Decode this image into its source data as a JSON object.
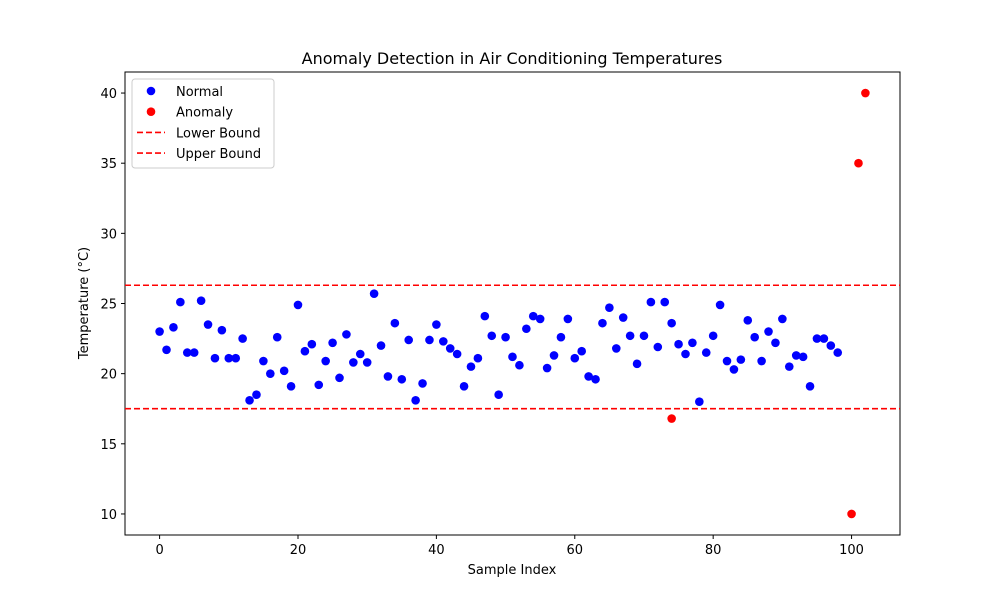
{
  "chart_data": {
    "type": "scatter",
    "title": "Anomaly Detection in Air Conditioning Temperatures",
    "xlabel": "Sample Index",
    "ylabel": "Temperature (°C)",
    "xlim": [
      -5,
      107
    ],
    "ylim": [
      8.5,
      41.5
    ],
    "xticks": [
      0,
      20,
      40,
      60,
      80,
      100
    ],
    "yticks": [
      10,
      15,
      20,
      25,
      30,
      35,
      40
    ],
    "grid": false,
    "legend_position": "top-left",
    "series": [
      {
        "name": "Normal",
        "color": "#0000ff",
        "marker": "circle",
        "x": [
          0,
          1,
          2,
          3,
          4,
          5,
          6,
          7,
          8,
          9,
          10,
          11,
          12,
          13,
          14,
          15,
          16,
          17,
          18,
          19,
          20,
          21,
          22,
          23,
          24,
          25,
          26,
          27,
          28,
          29,
          30,
          31,
          32,
          33,
          34,
          35,
          36,
          37,
          38,
          39,
          40,
          41,
          42,
          43,
          44,
          45,
          46,
          47,
          48,
          49,
          50,
          51,
          52,
          53,
          54,
          55,
          56,
          57,
          58,
          59,
          60,
          61,
          62,
          63,
          64,
          65,
          66,
          67,
          68,
          69,
          70,
          71,
          72,
          73,
          74,
          75,
          76,
          77,
          78,
          79,
          80,
          81,
          82,
          83,
          84,
          85,
          86,
          87,
          88,
          89,
          90,
          91,
          92,
          93,
          94,
          95,
          96,
          97,
          98
        ],
        "y": [
          23.0,
          21.7,
          23.3,
          25.1,
          21.5,
          21.5,
          25.2,
          23.5,
          21.1,
          23.1,
          21.1,
          21.1,
          22.5,
          18.1,
          18.5,
          20.9,
          20.0,
          22.6,
          20.2,
          19.1,
          24.9,
          21.6,
          22.1,
          19.2,
          20.9,
          22.2,
          19.7,
          22.8,
          20.8,
          21.4,
          20.8,
          25.7,
          22.0,
          19.8,
          23.6,
          19.6,
          22.4,
          18.1,
          19.3,
          22.4,
          23.5,
          22.3,
          21.8,
          21.4,
          19.1,
          20.5,
          21.1,
          24.1,
          22.7,
          18.5,
          22.6,
          21.2,
          20.6,
          23.2,
          24.1,
          23.9,
          20.4,
          21.3,
          22.6,
          23.9,
          21.1,
          21.6,
          19.8,
          19.6,
          23.6,
          24.7,
          21.8,
          24.0,
          22.7,
          20.7,
          22.7,
          25.1,
          21.9,
          25.1,
          23.6,
          22.1,
          21.4,
          22.2,
          18.0,
          21.5,
          22.7,
          24.9,
          20.9,
          20.3,
          21.0,
          23.8,
          22.6,
          20.9,
          23.0,
          22.2,
          23.9,
          20.5,
          21.3,
          21.2,
          19.1,
          22.5,
          22.5,
          22.0,
          21.5
        ]
      },
      {
        "name": "Anomaly",
        "color": "#ff0000",
        "marker": "circle",
        "x": [
          74,
          100,
          101,
          102
        ],
        "y": [
          16.8,
          10.0,
          35.0,
          40.0
        ]
      }
    ],
    "bounds": [
      {
        "name": "Lower Bound",
        "value": 17.5,
        "color": "#ff0000",
        "style": "dashed"
      },
      {
        "name": "Upper Bound",
        "value": 26.3,
        "color": "#ff0000",
        "style": "dashed"
      }
    ]
  }
}
